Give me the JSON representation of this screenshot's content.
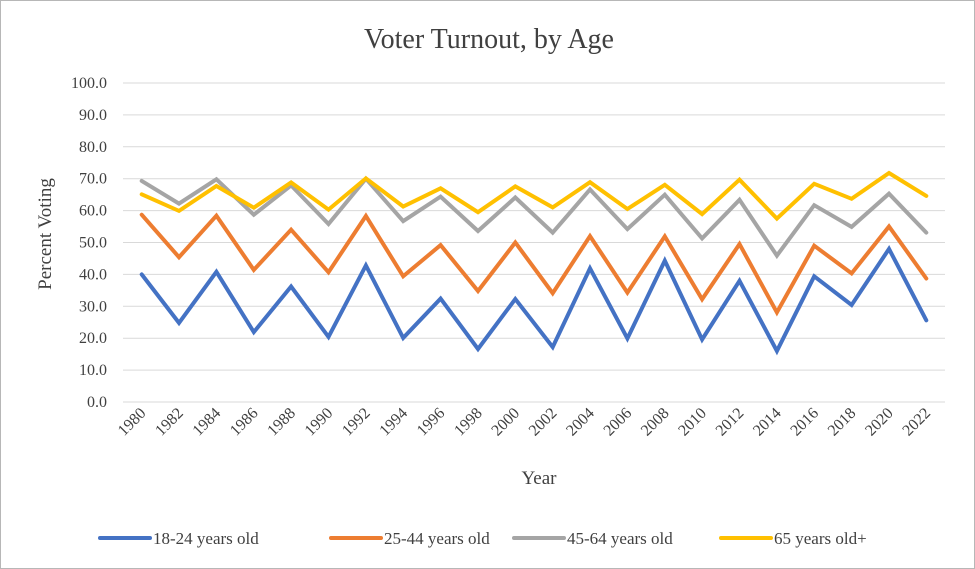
{
  "chart_data": {
    "type": "line",
    "title": "Voter Turnout, by Age",
    "xlabel": "Year",
    "ylabel": "Percent Voting",
    "ylim": [
      0,
      100
    ],
    "yticks": [
      "0.0",
      "10.0",
      "20.0",
      "30.0",
      "40.0",
      "50.0",
      "60.0",
      "70.0",
      "80.0",
      "90.0",
      "100.0"
    ],
    "categories": [
      "1980",
      "1982",
      "1984",
      "1986",
      "1988",
      "1990",
      "1992",
      "1994",
      "1996",
      "1998",
      "2000",
      "2002",
      "2004",
      "2006",
      "2008",
      "2010",
      "2012",
      "2014",
      "2016",
      "2018",
      "2020",
      "2022"
    ],
    "grid": true,
    "legend_position": "bottom",
    "series": [
      {
        "name": "18-24 years old",
        "color": "#4472C4",
        "values": [
          40.0,
          24.8,
          40.8,
          21.9,
          36.2,
          20.4,
          42.8,
          20.1,
          32.4,
          16.6,
          32.3,
          17.2,
          41.9,
          19.9,
          44.3,
          19.6,
          38.0,
          16.0,
          39.4,
          30.4,
          48.0,
          25.6
        ]
      },
      {
        "name": "25-44 years old",
        "color": "#ED7D31",
        "values": [
          58.7,
          45.4,
          58.4,
          41.4,
          54.0,
          40.7,
          58.3,
          39.4,
          49.2,
          34.8,
          50.0,
          34.1,
          52.0,
          34.3,
          51.9,
          32.2,
          49.5,
          28.1,
          49.0,
          40.3,
          55.0,
          38.7
        ]
      },
      {
        "name": "45-64 years old",
        "color": "#A5A5A5",
        "values": [
          69.3,
          62.2,
          69.8,
          58.7,
          67.9,
          55.8,
          70.0,
          56.7,
          64.4,
          53.6,
          64.1,
          53.1,
          66.6,
          54.2,
          65.0,
          51.3,
          63.4,
          45.9,
          61.7,
          54.9,
          65.3,
          53.1
        ]
      },
      {
        "name": "65 years old+",
        "color": "#FFC000",
        "values": [
          65.1,
          59.9,
          67.7,
          60.9,
          68.8,
          60.3,
          70.1,
          61.3,
          67.0,
          59.5,
          67.6,
          61.0,
          68.9,
          60.5,
          68.1,
          58.9,
          69.7,
          57.5,
          68.4,
          63.7,
          71.8,
          64.6
        ]
      }
    ]
  }
}
